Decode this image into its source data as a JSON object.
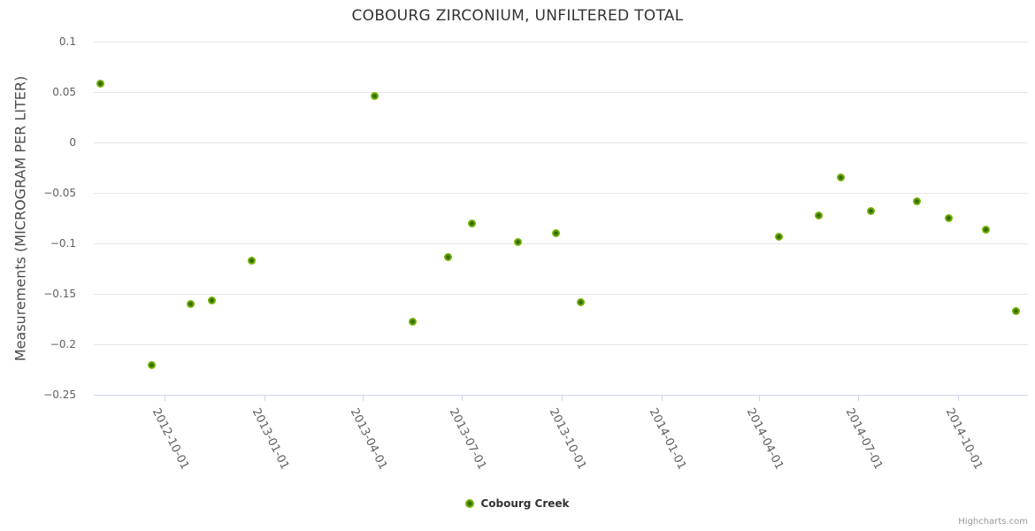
{
  "title": "COBOURG ZIRCONIUM, UNFILTERED TOTAL",
  "credits": "Highcharts.com",
  "legend": {
    "items": [
      {
        "label": "Cobourg Creek",
        "color": "#7eb607"
      }
    ]
  },
  "colors": {
    "series_green": "#7eb607",
    "marker_core_green": "#2e6c02",
    "gridline": "#e6e6e6",
    "axis_line": "#ccd6eb",
    "axis_label": "#606060",
    "title_text": "#333333",
    "credits_text": "#999999"
  },
  "chart_data": {
    "type": "scatter",
    "title": "COBOURG ZIRCONIUM, UNFILTERED TOTAL",
    "xlabel": "",
    "ylabel": "Measurements (MICROGRAM PER LITER)",
    "grid": true,
    "legend_position": "bottom-center",
    "x_range": [
      "2012-07-28",
      "2014-12-04"
    ],
    "ylim": [
      -0.25,
      0.1
    ],
    "x_ticks": [
      "2012-10-01",
      "2013-01-01",
      "2013-04-01",
      "2013-07-01",
      "2013-10-01",
      "2014-01-01",
      "2014-04-01",
      "2014-07-01",
      "2014-10-01"
    ],
    "y_ticks": [
      {
        "value": 0.1,
        "label": "0.1"
      },
      {
        "value": 0.05,
        "label": "0.05"
      },
      {
        "value": 0,
        "label": "0"
      },
      {
        "value": -0.05,
        "label": "−0.05"
      },
      {
        "value": -0.1,
        "label": "−0.1"
      },
      {
        "value": -0.15,
        "label": "−0.15"
      },
      {
        "value": -0.2,
        "label": "−0.2"
      },
      {
        "value": -0.25,
        "label": "−0.25"
      }
    ],
    "series": [
      {
        "name": "Cobourg Creek",
        "color": "#7eb607",
        "points": [
          {
            "date": "2012-08-03",
            "value": 0.058
          },
          {
            "date": "2012-09-19",
            "value": -0.221
          },
          {
            "date": "2012-10-25",
            "value": -0.16
          },
          {
            "date": "2012-11-14",
            "value": -0.157
          },
          {
            "date": "2012-12-20",
            "value": -0.117
          },
          {
            "date": "2013-04-12",
            "value": 0.046
          },
          {
            "date": "2013-05-17",
            "value": -0.178
          },
          {
            "date": "2013-06-19",
            "value": -0.114
          },
          {
            "date": "2013-07-11",
            "value": -0.08
          },
          {
            "date": "2013-08-22",
            "value": -0.099
          },
          {
            "date": "2013-09-26",
            "value": -0.09
          },
          {
            "date": "2013-10-19",
            "value": -0.158
          },
          {
            "date": "2014-04-19",
            "value": -0.093
          },
          {
            "date": "2014-05-26",
            "value": -0.072
          },
          {
            "date": "2014-06-15",
            "value": -0.035
          },
          {
            "date": "2014-07-13",
            "value": -0.068
          },
          {
            "date": "2014-08-24",
            "value": -0.058
          },
          {
            "date": "2014-09-22",
            "value": -0.075
          },
          {
            "date": "2014-10-26",
            "value": -0.086
          },
          {
            "date": "2014-11-23",
            "value": -0.167
          }
        ]
      }
    ]
  }
}
